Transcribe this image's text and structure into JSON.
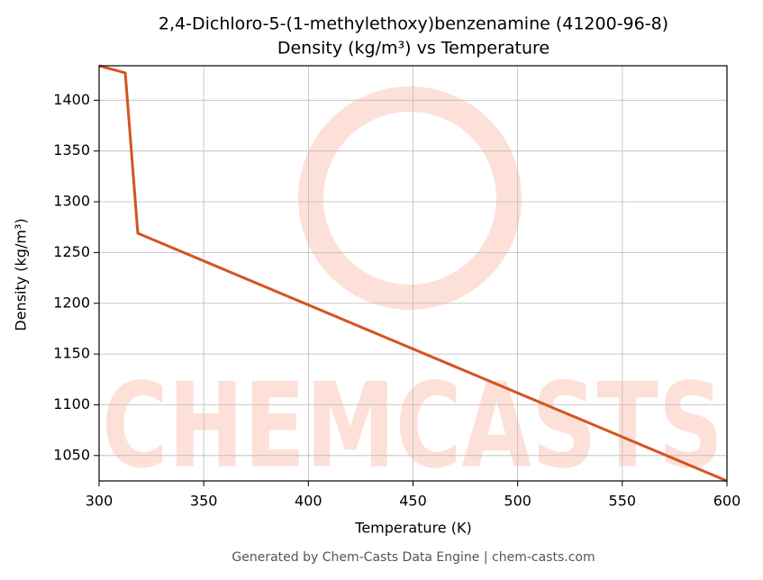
{
  "chart_data": {
    "type": "line",
    "title": "2,4-Dichloro-5-(1-methylethoxy)benzenamine (41200-96-8)",
    "subtitle": "Density (kg/m³) vs Temperature",
    "x_label": "Temperature (K)",
    "y_label": "Density (kg/m³)",
    "watermark": "CHEMCASTS",
    "footer": "Generated by Chem-Casts Data Engine | chem-casts.com",
    "x": [
      300,
      312.5,
      318.5,
      600
    ],
    "series": [
      {
        "name": "Density",
        "color": "#d4541f",
        "values": [
          1434,
          1427,
          1269,
          1025
        ]
      }
    ],
    "xlim": [
      300,
      600
    ],
    "xticks": [
      300,
      350,
      400,
      450,
      500,
      550,
      600
    ],
    "ylim": [
      1025,
      1434
    ],
    "yticks": [
      1050,
      1100,
      1150,
      1200,
      1250,
      1300,
      1350,
      1400
    ],
    "grid": true
  }
}
